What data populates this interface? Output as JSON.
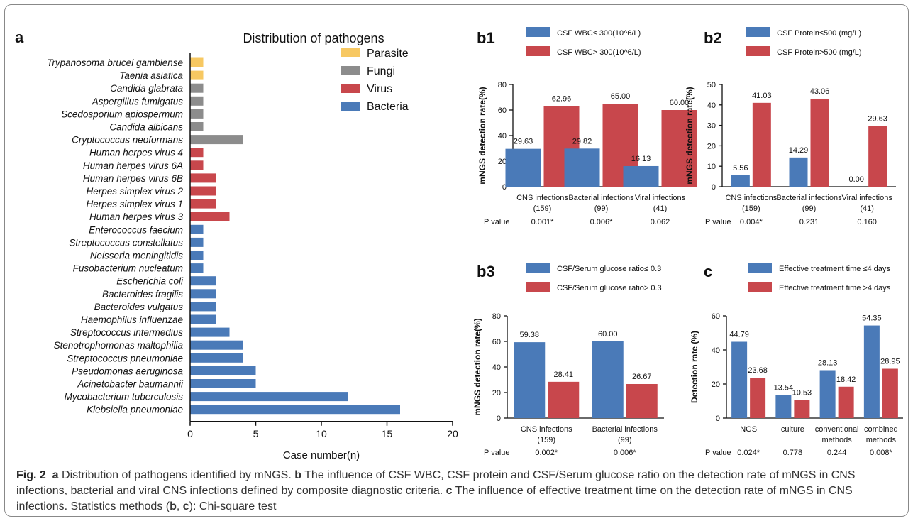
{
  "figure": {
    "caption": {
      "fig_label": "Fig. 2",
      "p1_label": "a",
      "p1_text": "Distribution of pathogens identified by mNGS.",
      "p2_label": "b",
      "p2_text": "The influence of CSF WBC, CSF protein and CSF/Serum glucose ratio on the detection rate of mNGS in CNS infections, bacterial and viral CNS infections defined by composite diagnostic criteria.",
      "p3_label": "c",
      "p3_text": "The influence of effective treatment time on the detection rate of mNGS in CNS infections. Statistics methods (",
      "p3_b": "b",
      "p3_sep": ", ",
      "p3_c": "c",
      "p3_end": "): Chi-square test"
    }
  },
  "colors": {
    "blue": "#4a7ab8",
    "red": "#c8474c",
    "gray": "#8c8c8c",
    "yellow": "#f7c862"
  },
  "chart_data": [
    {
      "id": "a",
      "panel_label": "a",
      "type": "bar",
      "orientation": "horizontal",
      "title": "Distribution of pathogens",
      "xlabel": "Case number(n)",
      "xlim": [
        0,
        20
      ],
      "xticks": [
        0,
        5,
        10,
        15,
        20
      ],
      "legend": [
        "Parasite",
        "Fungi",
        "Virus",
        "Bacteria"
      ],
      "legend_colors": [
        "#f7c862",
        "#8c8c8c",
        "#c8474c",
        "#4a7ab8"
      ],
      "categories": [
        "Trypanosoma brucei gambiense",
        "Taenia asiatica",
        "Candida glabrata",
        "Aspergillus fumigatus",
        "Scedosporium apiospermum",
        "Candida albicans",
        "Cryptococcus neoformans",
        "Human herpes virus 4",
        "Human herpes virus 6A",
        "Human herpes virus 6B",
        "Herpes simplex virus 2",
        "Herpes simplex virus 1",
        "Human herpes virus 3",
        "Enterococcus faecium",
        "Streptococcus constellatus",
        "Neisseria meningitidis",
        "Fusobacterium nucleatum",
        "Escherichia coli",
        "Bacteroides fragilis",
        "Bacteroides vulgatus",
        "Haemophilus influenzae",
        "Streptococcus intermedius",
        "Stenotrophomonas maltophilia",
        "Streptococcus pneumoniae",
        "Pseudomonas aeruginosa",
        "Acinetobacter baumannii",
        "Mycobacterium tuberculosis",
        "Klebsiella pneumoniae"
      ],
      "values": [
        1,
        1,
        1,
        1,
        1,
        1,
        4,
        1,
        1,
        2,
        2,
        2,
        3,
        1,
        1,
        1,
        1,
        2,
        2,
        2,
        2,
        3,
        4,
        4,
        5,
        5,
        12,
        16
      ],
      "groups": [
        "Parasite",
        "Parasite",
        "Fungi",
        "Fungi",
        "Fungi",
        "Fungi",
        "Fungi",
        "Virus",
        "Virus",
        "Virus",
        "Virus",
        "Virus",
        "Virus",
        "Bacteria",
        "Bacteria",
        "Bacteria",
        "Bacteria",
        "Bacteria",
        "Bacteria",
        "Bacteria",
        "Bacteria",
        "Bacteria",
        "Bacteria",
        "Bacteria",
        "Bacteria",
        "Bacteria",
        "Bacteria",
        "Bacteria"
      ]
    },
    {
      "id": "b1",
      "panel_label": "b1",
      "type": "bar",
      "ylabel": "mNGS  detection rate(%)",
      "ylim": [
        0,
        80
      ],
      "yticks": [
        0,
        20,
        40,
        60,
        80
      ],
      "categories": [
        "CNS infections\n(159)",
        "Bacterial infections\n(99)",
        "Viral infections\n(41)"
      ],
      "series": [
        {
          "name": "CSF WBC≤ 300(10^6/L)",
          "values": [
            29.63,
            29.82,
            16.13
          ],
          "labels": [
            "29.63",
            "29.82",
            "16.13"
          ]
        },
        {
          "name": "CSF WBC> 300(10^6/L)",
          "values": [
            62.96,
            65.0,
            60.0
          ],
          "labels": [
            "62.96",
            "65.00",
            "60.00"
          ]
        }
      ],
      "p_label": "P value",
      "p_values": [
        "0.001*",
        "0.006*",
        "0.062"
      ]
    },
    {
      "id": "b2",
      "panel_label": "b2",
      "type": "bar",
      "ylabel": "mNGS  detection rate(%)",
      "ylim": [
        0,
        50
      ],
      "yticks": [
        0,
        10,
        20,
        30,
        40,
        50
      ],
      "categories": [
        "CNS infections\n(159)",
        "Bacterial infections\n(99)",
        "Viral infections\n(41)"
      ],
      "series": [
        {
          "name": "CSF Protein≤500  (mg/L)",
          "values": [
            5.56,
            14.29,
            0.0
          ],
          "labels": [
            "5.56",
            "14.29",
            "0.00"
          ]
        },
        {
          "name": "CSF Protein>500  (mg/L)",
          "values": [
            41.03,
            43.06,
            29.63
          ],
          "labels": [
            "41.03",
            "43.06",
            "29.63"
          ]
        }
      ],
      "p_label": "P value",
      "p_values": [
        "0.004*",
        "0.231",
        "0.160"
      ]
    },
    {
      "id": "b3",
      "panel_label": "b3",
      "type": "bar",
      "ylabel": "mNGS  detection rate(%)",
      "ylim": [
        0,
        80
      ],
      "yticks": [
        0,
        20,
        40,
        60,
        80
      ],
      "categories": [
        "CNS infections\n(159)",
        "Bacterial infections\n(99)"
      ],
      "series": [
        {
          "name": "CSF/Serum glucose ratio≤ 0.3",
          "values": [
            59.38,
            60.0
          ],
          "labels": [
            "59.38",
            "60.00"
          ]
        },
        {
          "name": "CSF/Serum glucose ratio> 0.3",
          "values": [
            28.41,
            26.67
          ],
          "labels": [
            "28.41",
            "26.67"
          ]
        }
      ],
      "p_label": "P value",
      "p_values": [
        "0.002*",
        "0.006*"
      ]
    },
    {
      "id": "c",
      "panel_label": "c",
      "type": "bar",
      "ylabel": "Detection rate  (%)",
      "ylim": [
        0,
        60
      ],
      "yticks": [
        0,
        20,
        40,
        60
      ],
      "categories": [
        "NGS",
        "culture",
        "conventional\nmethods",
        "combined\nmethods"
      ],
      "series": [
        {
          "name": "Effective treatment time ≤4 days",
          "values": [
            44.79,
            13.54,
            28.13,
            54.35
          ],
          "labels": [
            "44.79",
            "13.54",
            "28.13",
            "54.35"
          ]
        },
        {
          "name": "Effective treatment time >4 days",
          "values": [
            23.68,
            10.53,
            18.42,
            28.95
          ],
          "labels": [
            "23.68",
            "10.53",
            "18.42",
            "28.95"
          ]
        }
      ],
      "p_label": "P value",
      "p_values": [
        "0.024*",
        "0.778",
        "0.244",
        "0.008*"
      ]
    }
  ]
}
